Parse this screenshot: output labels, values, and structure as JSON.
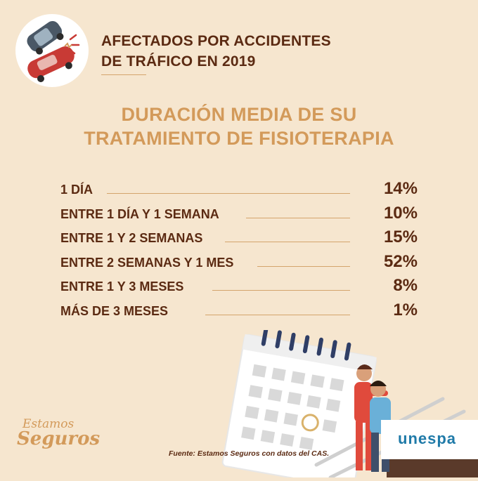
{
  "header": {
    "title_line1": "AFECTADOS POR ACCIDENTES",
    "title_line2": "DE TRÁFICO EN 2019"
  },
  "section": {
    "title_line1": "DURACIÓN MEDIA DE SU",
    "title_line2": "TRATAMIENTO DE FISIOTERAPIA"
  },
  "rows": [
    {
      "label": "1 DÍA",
      "value": "14%"
    },
    {
      "label": "ENTRE 1 DÍA Y 1 SEMANA",
      "value": "10%"
    },
    {
      "label": "ENTRE 1 Y 2 SEMANAS",
      "value": "15%"
    },
    {
      "label": "ENTRE 2 SEMANAS Y 1 MES",
      "value": "52%"
    },
    {
      "label": "ENTRE 1 Y 3 MESES",
      "value": "8%"
    },
    {
      "label": "MÁS DE 3  MESES",
      "value": "1%"
    }
  ],
  "brand": {
    "line1": "Estamos",
    "line2": "Seguros"
  },
  "source": "Fuente: Estamos Seguros con datos del CAS.",
  "partner_logo": "unespa",
  "icons": [
    "car-crash-icon",
    "calendar-icon",
    "physiotherapist-illustration"
  ],
  "colors": {
    "background": "#f6e6cf",
    "dark_text": "#5b2a12",
    "accent": "#d39a5a",
    "partner_blue": "#1f7aa8"
  }
}
